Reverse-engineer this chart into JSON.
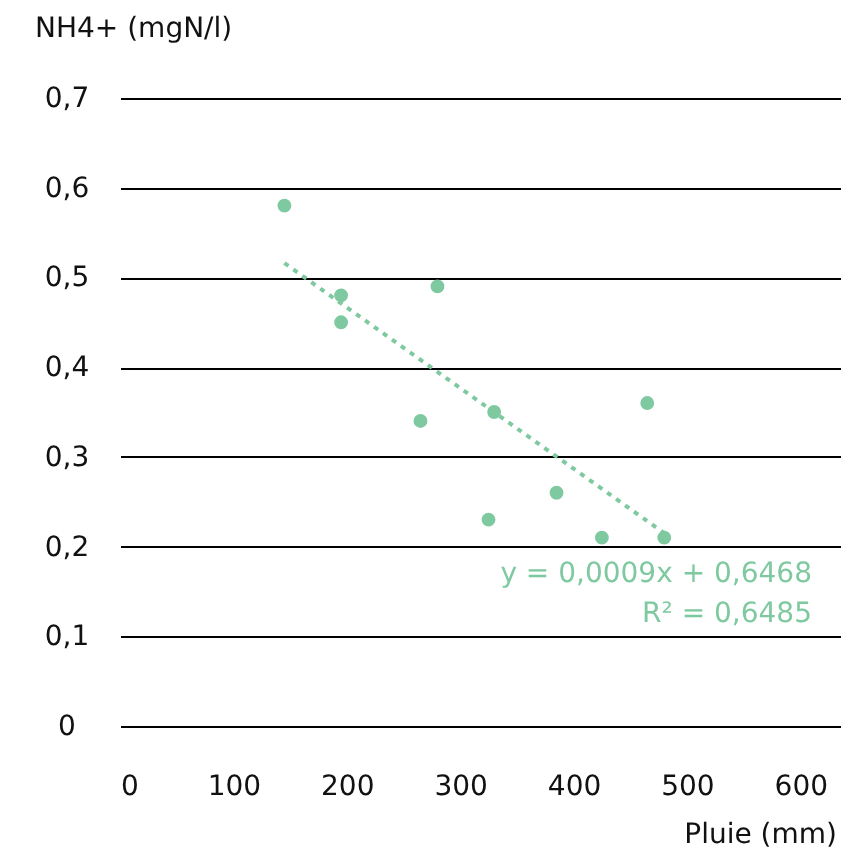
{
  "chart_data": {
    "type": "scatter",
    "ylabel": "NH4+ (mgN/l)",
    "xlabel": "Pluie (mm)",
    "series": [
      {
        "color": "#7fc9a0",
        "marker": "circle",
        "x": [
          145,
          195,
          195,
          280,
          265,
          330,
          465,
          385,
          325,
          425,
          480
        ],
        "values": [
          0.58,
          0.48,
          0.45,
          0.49,
          0.34,
          0.35,
          0.36,
          0.26,
          0.23,
          0.21,
          0.21
        ]
      },
      {
        "type": "line",
        "color": "#7fc9a0",
        "line_style": "dotted",
        "x": [
          145,
          480
        ],
        "values": [
          0.516,
          0.215
        ]
      }
    ],
    "annotations": [
      "y = 0,0009x + 0,6468",
      "R² = 0,6485"
    ],
    "xlim": [
      0,
      635
    ],
    "xticks": [
      0,
      100,
      200,
      300,
      400,
      500,
      600
    ],
    "ylim": [
      0,
      0.7
    ],
    "yticks": [
      0,
      {
        "value": 0.1,
        "label": "0,1"
      },
      {
        "value": 0.2,
        "label": "0,2"
      },
      {
        "value": 0.3,
        "label": "0,3"
      },
      {
        "value": 0.4,
        "label": "0,4"
      },
      {
        "value": 0.5,
        "label": "0,5"
      },
      {
        "value": 0.6,
        "label": "0,6"
      },
      {
        "value": 0.7,
        "label": "0,7"
      }
    ],
    "grid": "y"
  }
}
